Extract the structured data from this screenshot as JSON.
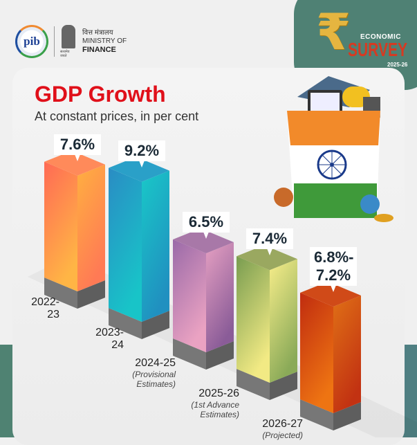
{
  "header": {
    "pib_logo": "pib",
    "ministry_hindi": "वित्त मंत्रालय",
    "ministry_line1": "MINISTRY OF",
    "ministry_line2": "FINANCE",
    "emblem_motto": "सत्यमेव जयते",
    "survey_symbol": "₹",
    "survey_line1": "ECONOMIC",
    "survey_line2": "SURVEY",
    "survey_year": "2025-26"
  },
  "chart_data": {
    "type": "bar",
    "title": "GDP Growth",
    "subtitle": "At constant prices, in per cent",
    "categories": [
      "2022-23",
      "2023-24",
      "2024-25",
      "2025-26",
      "2026-27"
    ],
    "category_lines": [
      [
        "2022-",
        "23"
      ],
      [
        "2023-",
        "24"
      ],
      [
        "2024-25"
      ],
      [
        "2025-26"
      ],
      [
        "2026-27"
      ]
    ],
    "category_notes": [
      [],
      [],
      [
        "(Provisional",
        "Estimates)"
      ],
      [
        "(1st Advance",
        "Estimates)"
      ],
      [
        "(Projected)"
      ]
    ],
    "values": [
      7.6,
      9.2,
      6.5,
      7.4,
      7.0
    ],
    "range": [
      null,
      null,
      null,
      null,
      [
        6.8,
        7.2
      ]
    ],
    "value_labels": [
      [
        "7.6%"
      ],
      [
        "9.2%"
      ],
      [
        "6.5%"
      ],
      [
        "7.4%"
      ],
      [
        "6.8%-",
        "7.2%"
      ]
    ],
    "unit": "%",
    "colors": [
      {
        "left": [
          "#ff6a55",
          "#ffb545"
        ],
        "right": [
          "#ffb040",
          "#ff7a55"
        ],
        "top": "#ff8a5a"
      },
      {
        "left": [
          "#2a8cc4",
          "#18c4c8"
        ],
        "right": [
          "#19c8c8",
          "#2090c0"
        ],
        "top": "#2aa0c8"
      },
      {
        "left": [
          "#9a6aa8",
          "#eaa2c2"
        ],
        "right": [
          "#e6a0c2",
          "#8a5c98"
        ],
        "top": "#a878a8"
      },
      {
        "left": [
          "#789c50",
          "#f2ea84"
        ],
        "right": [
          "#f8ee8a",
          "#8aaa58"
        ],
        "top": "#9aa860"
      },
      {
        "left": [
          "#c02c10",
          "#ee7412"
        ],
        "right": [
          "#e07016",
          "#c23212"
        ],
        "top": "#d04a18"
      }
    ]
  }
}
